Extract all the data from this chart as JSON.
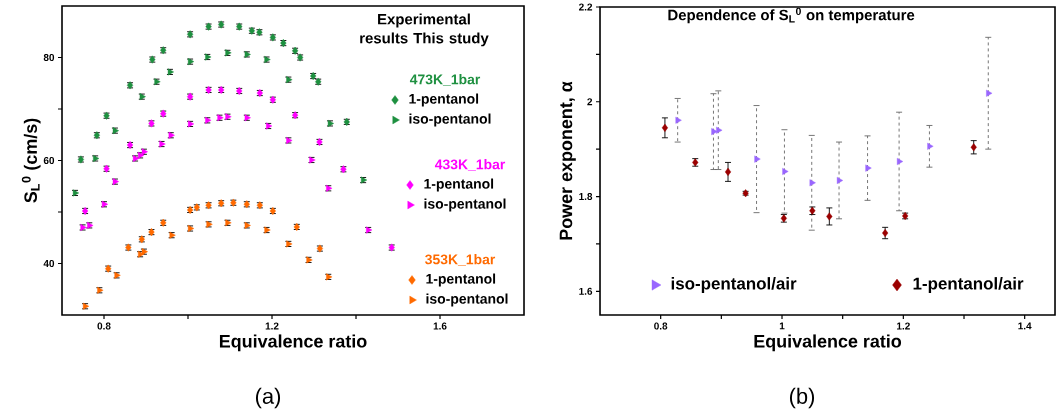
{
  "chart_data": [
    {
      "type": "scatter",
      "legend_title": "Experimental results This study",
      "xlabel": "Equivalence ratio",
      "ylabel": "S$_{L}$$^{0}$ (cm/s)",
      "xlim": [
        0.7,
        1.8
      ],
      "ylim": [
        30,
        90
      ],
      "xticks": [
        0.8,
        {
          "value": 1.0,
          "label": null
        },
        1.2,
        {
          "value": 1.4,
          "label": null
        },
        1.6
      ],
      "yticks": [
        40,
        {
          "value": 50,
          "label": null
        },
        60,
        {
          "value": 70,
          "label": null
        },
        80
      ],
      "legend": "right",
      "annotations": [
        "473K_1bar",
        "433K_1bar",
        "353K_1bar",
        "(a)"
      ],
      "series": [
        {
          "name": "1-pentanol",
          "color": "#1e9040",
          "marker": "diamond",
          "x": [
            0.745,
            0.783,
            0.806,
            0.862,
            0.915,
            0.941,
            1.005,
            1.049,
            1.079,
            1.122,
            1.152,
            1.17,
            1.202,
            1.227,
            1.255,
            1.267,
            1.298,
            1.31,
            1.378
          ],
          "values": [
            60.2,
            64.9,
            68.7,
            74.6,
            79.6,
            81.4,
            84.5,
            86.0,
            86.4,
            86.0,
            85.2,
            84.9,
            83.9,
            82.8,
            81.3,
            80.0,
            76.4,
            75.3,
            67.5
          ],
          "errors": [
            0.5,
            0.5,
            0.5,
            0.5,
            0.5,
            0.5,
            0.5,
            0.5,
            0.5,
            0.5,
            0.5,
            0.5,
            0.5,
            0.5,
            0.5,
            0.5,
            0.5,
            0.5,
            0.5
          ]
        },
        {
          "name": "iso-pentanol",
          "color": "#1e9040",
          "marker": "triangle",
          "x": [
            0.731,
            0.779,
            0.826,
            0.89,
            0.925,
            0.957,
            1.005,
            1.046,
            1.094,
            1.14,
            1.187,
            1.239,
            1.338,
            1.417
          ],
          "values": [
            53.7,
            60.4,
            65.8,
            72.4,
            75.3,
            77.2,
            79.2,
            80.1,
            80.9,
            80.6,
            79.6,
            75.7,
            67.2,
            56.2
          ],
          "errors": [
            0.5,
            0.5,
            0.5,
            0.5,
            0.5,
            0.5,
            0.5,
            0.5,
            0.5,
            0.5,
            0.5,
            0.5,
            0.5,
            0.5
          ]
        },
        {
          "name": "1-pentanol",
          "color": "#ff00ff",
          "marker": "diamond",
          "x": [
            0.755,
            0.806,
            0.862,
            0.913,
            0.941,
            1.005,
            1.049,
            1.079,
            1.122,
            1.171,
            1.202,
            1.255,
            1.313,
            1.37,
            1.485
          ],
          "values": [
            50.2,
            58.4,
            63.0,
            67.2,
            69.1,
            72.4,
            73.7,
            73.7,
            73.5,
            73.1,
            71.8,
            68.8,
            63.6,
            58.3,
            43.1
          ],
          "errors": [
            0.5,
            0.5,
            0.5,
            0.5,
            0.5,
            0.5,
            0.5,
            0.5,
            0.5,
            0.5,
            0.5,
            0.5,
            0.5,
            0.5,
            0.5
          ]
        },
        {
          "name": "iso-pentanol",
          "color": "#ff00ff",
          "marker": "triangle",
          "x": [
            0.749,
            0.765,
            0.8,
            0.826,
            0.874,
            0.886,
            0.895,
            0.937,
            0.959,
            1.005,
            1.046,
            1.075,
            1.094,
            1.14,
            1.191,
            1.239,
            1.294,
            1.334,
            1.429
          ],
          "values": [
            47.0,
            47.4,
            51.5,
            55.9,
            60.4,
            61.0,
            61.7,
            63.2,
            64.9,
            67.1,
            67.8,
            68.3,
            68.5,
            68.3,
            66.7,
            63.9,
            60.1,
            54.6,
            46.5
          ],
          "errors": [
            0.5,
            0.5,
            0.5,
            0.5,
            0.5,
            0.5,
            0.5,
            0.5,
            0.5,
            0.5,
            0.5,
            0.5,
            0.5,
            0.5,
            0.5,
            0.5,
            0.5,
            0.5,
            0.5
          ]
        },
        {
          "name": "1-pentanol",
          "color": "#ff6a00",
          "marker": "diamond",
          "x": [
            0.81,
            0.858,
            0.89,
            0.913,
            0.941,
            1.005,
            1.021,
            1.049,
            1.079,
            1.108,
            1.14,
            1.171,
            1.202,
            1.259,
            1.314
          ],
          "values": [
            39.0,
            43.1,
            44.7,
            46.1,
            47.9,
            50.4,
            50.9,
            51.3,
            51.7,
            51.8,
            51.5,
            51.3,
            50.2,
            47.1,
            42.9
          ],
          "errors": [
            0.5,
            0.5,
            0.5,
            0.5,
            0.5,
            0.5,
            0.5,
            0.5,
            0.5,
            0.5,
            0.5,
            0.5,
            0.5,
            0.5,
            0.5
          ]
        },
        {
          "name": "iso-pentanol",
          "color": "#ff6a00",
          "marker": "triangle",
          "x": [
            0.755,
            0.789,
            0.83,
            0.886,
            0.895,
            0.961,
            1.005,
            1.049,
            1.094,
            1.14,
            1.187,
            1.239,
            1.287,
            1.334
          ],
          "values": [
            31.7,
            34.8,
            37.7,
            41.8,
            42.3,
            45.5,
            46.8,
            47.6,
            47.9,
            47.4,
            46.5,
            43.8,
            40.7,
            37.4
          ],
          "errors": [
            0.5,
            0.5,
            0.5,
            0.5,
            0.5,
            0.5,
            0.5,
            0.5,
            0.5,
            0.5,
            0.5,
            0.5,
            0.5,
            0.5
          ]
        }
      ]
    },
    {
      "type": "scatter",
      "title": "Dependence of S$_{L}$$^{0}$ on temperature",
      "xlabel": "Equivalence ratio",
      "ylabel": "Power exponent, α",
      "xlim": [
        0.7,
        1.45
      ],
      "ylim": [
        1.55,
        2.2
      ],
      "xticks": [
        0.8,
        {
          "value": 0.9,
          "label": null
        },
        1,
        {
          "value": 1.1,
          "label": null
        },
        1.2,
        {
          "value": 1.3,
          "label": null
        },
        1.4
      ],
      "yticks": [
        1.6,
        {
          "value": 1.7,
          "label": null
        },
        1.8,
        {
          "value": 1.9,
          "label": null
        },
        2,
        {
          "value": 2.1,
          "label": null
        },
        2.2
      ],
      "legend": "bottom",
      "annotations": [
        "(b)"
      ],
      "series": [
        {
          "name": "iso-pentanol/air",
          "color": "#9966ff",
          "marker": "triangle",
          "x": [
            0.828,
            0.887,
            0.895,
            0.958,
            1.004,
            1.049,
            1.094,
            1.141,
            1.193,
            1.243,
            1.34
          ],
          "values": [
            1.961,
            1.937,
            1.94,
            1.879,
            1.853,
            1.829,
            1.834,
            1.86,
            1.874,
            1.906,
            2.018
          ],
          "errors": [
            0.046,
            0.08,
            0.083,
            0.113,
            0.088,
            0.1,
            0.081,
            0.068,
            0.104,
            0.044,
            0.118
          ]
        },
        {
          "name": "1-pentanol/air",
          "color": "#9b0000",
          "marker": "diamond",
          "x": [
            0.807,
            0.857,
            0.911,
            0.94,
            1.003,
            1.05,
            1.078,
            1.17,
            1.203,
            1.316
          ],
          "values": [
            1.945,
            1.872,
            1.852,
            1.807,
            1.754,
            1.77,
            1.758,
            1.723,
            1.759,
            1.904
          ],
          "errors": [
            0.021,
            0.008,
            0.02,
            0.004,
            0.008,
            0.008,
            0.018,
            0.012,
            0.006,
            0.014
          ]
        }
      ]
    }
  ]
}
